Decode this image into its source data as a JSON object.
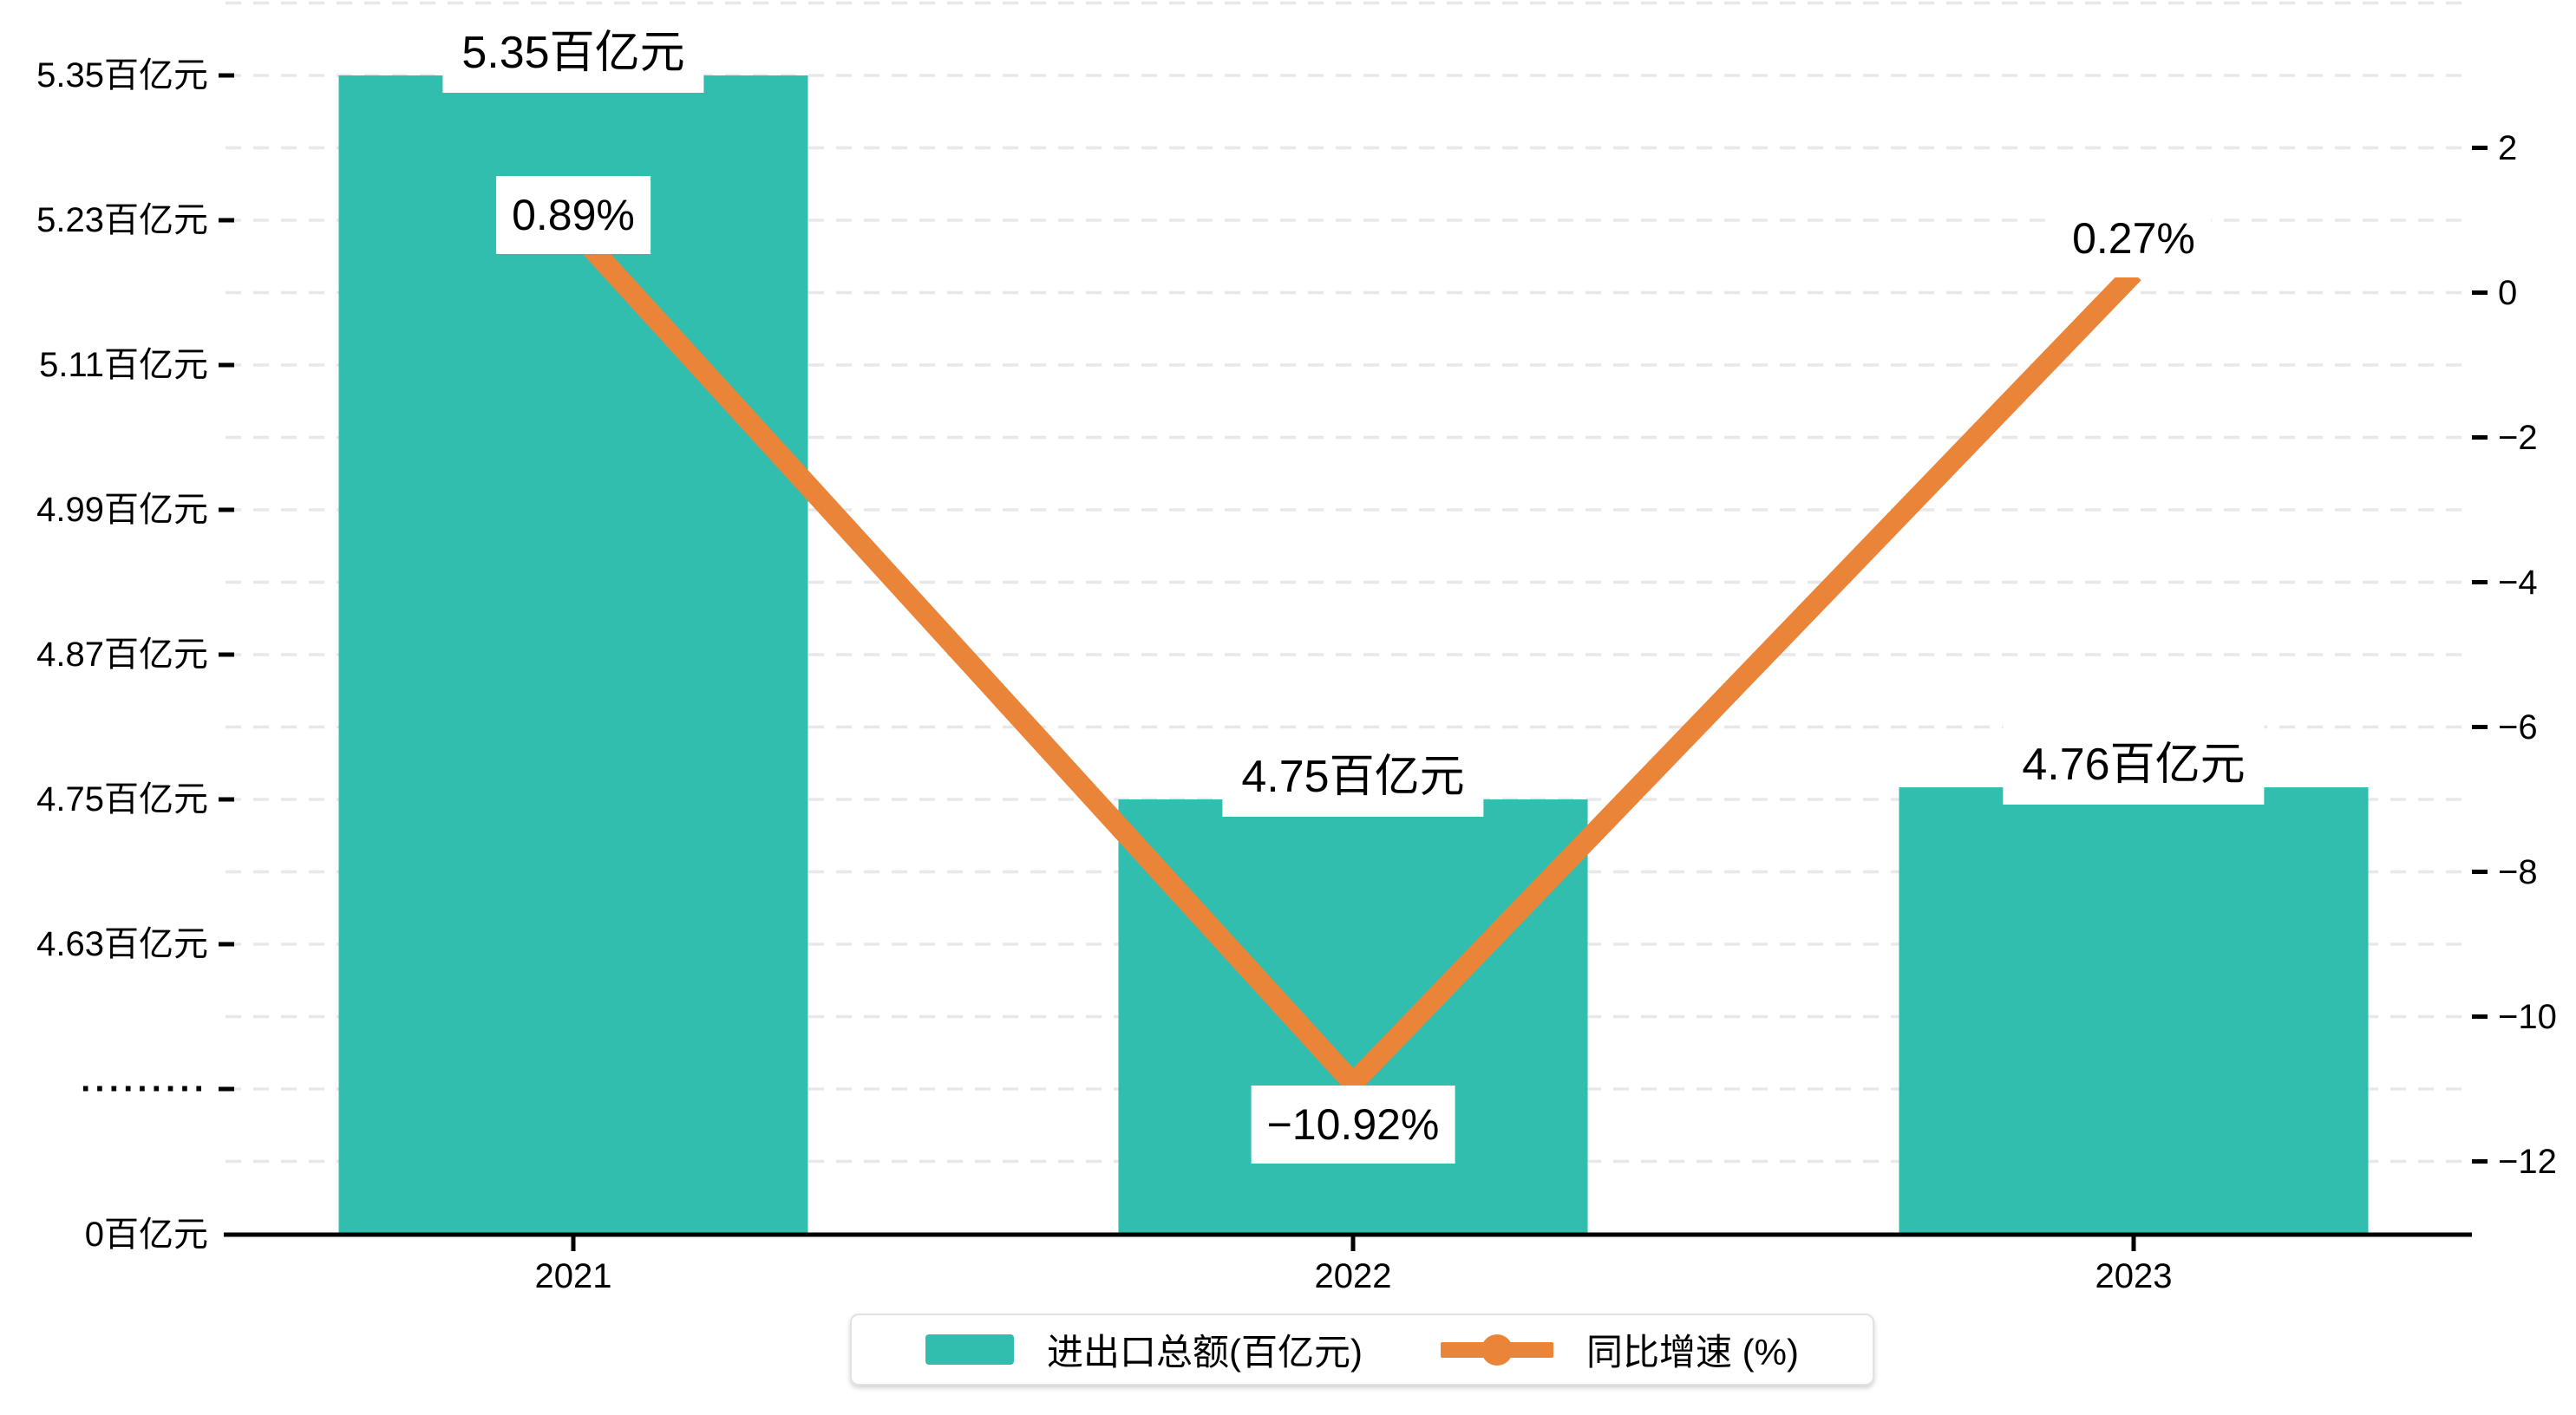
{
  "chart_data": {
    "type": [
      "bar",
      "line"
    ],
    "categories": [
      "2021",
      "2022",
      "2023"
    ],
    "series": [
      {
        "name": "进出口总额(百亿元)",
        "type": "bar",
        "axis": "left",
        "values": [
          5.35,
          4.75,
          4.76
        ],
        "point_labels": [
          "5.35百亿元",
          "4.75百亿元",
          "4.76百亿元"
        ],
        "color": "#31beae"
      },
      {
        "name": "同比增速 (%)",
        "type": "line",
        "axis": "right",
        "values": [
          0.89,
          -10.92,
          0.27
        ],
        "point_labels": [
          "0.89%",
          "−10.92%",
          "0.27%"
        ],
        "color": "#ea8439"
      }
    ],
    "left_axis": {
      "unit": "百亿元",
      "tick_labels": [
        "5.35百亿元",
        "5.23百亿元",
        "5.11百亿元",
        "4.99百亿元",
        "4.87百亿元",
        "4.75百亿元",
        "4.63百亿元",
        "·········",
        "0百亿元"
      ],
      "tick_values": [
        5.35,
        5.23,
        5.11,
        4.99,
        4.87,
        4.75,
        4.63,
        null,
        0
      ],
      "break_label": "·········",
      "min_shown": 0,
      "max_shown": 5.35
    },
    "right_axis": {
      "unit": "%",
      "tick_labels": [
        "2",
        "0",
        "−2",
        "−4",
        "−6",
        "−8",
        "−10",
        "−12"
      ],
      "tick_values": [
        2,
        0,
        -2,
        -4,
        -6,
        -8,
        -10,
        -12
      ]
    },
    "legend": {
      "position": "bottom-center",
      "items": [
        {
          "label": "进出口总额(百亿元)",
          "marker": "bar-swatch",
          "color": "#31beae"
        },
        {
          "label": "同比增速 (%)",
          "marker": "line-dot",
          "color": "#ea8439"
        }
      ]
    },
    "grid": {
      "visible": true,
      "style": "dashed",
      "color": "#e8e8e8"
    },
    "colors": {
      "bar": "#31beae",
      "line": "#ea8439",
      "axis": "#000000",
      "text": "#000000",
      "background": "#ffffff"
    }
  }
}
